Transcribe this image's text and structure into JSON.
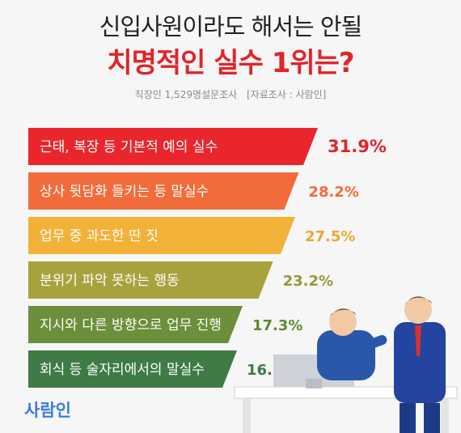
{
  "title_line1": "신입사원이라도 해서는 안될",
  "title_line2": "치명적인 실수 1위는?",
  "source_left": "직장인 1,529명설문조사",
  "source_right": "[자료조사 : 사람인]",
  "brand": "사람인",
  "chart_data": {
    "type": "bar",
    "orientation": "horizontal",
    "unit": "%",
    "categories": [
      "근태, 복장 등 기본적 예의 실수",
      "상사 뒷담화 들키는 등 말실수",
      "업무 중 과도한 딴 짓",
      "분위기 파악 못하는 행동",
      "지시와 다른 방향으로 업무 진행",
      "회식 등 술자리에서의 말실수"
    ],
    "values": [
      31.9,
      28.2,
      27.5,
      23.2,
      17.3,
      16.2
    ],
    "labels": [
      "31.9%",
      "28.2%",
      "27.5%",
      "23.2%",
      "17.3%",
      "16.2%"
    ],
    "colors": [
      "#e8262c",
      "#f26b3a",
      "#f2b237",
      "#a7a23e",
      "#6b8f3a",
      "#3e7b45"
    ],
    "label_colors": [
      "#e0252a",
      "#f26b3a",
      "#e8a92e",
      "#9a9638",
      "#5f8a34",
      "#3e7b45"
    ]
  }
}
